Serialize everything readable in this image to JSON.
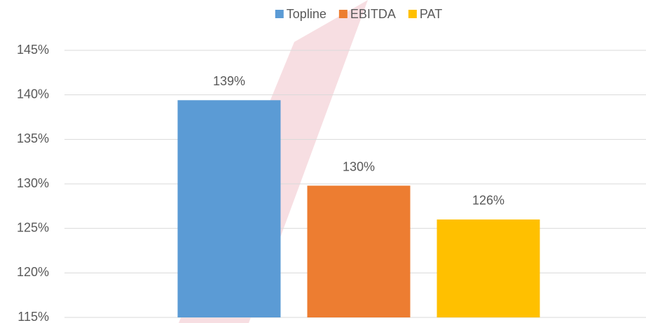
{
  "chart_data": {
    "type": "bar",
    "categories": [
      null
    ],
    "series": [
      {
        "name": "Topline",
        "color": "#5b9bd5",
        "values": [
          139.4
        ],
        "value_labels": [
          "139%"
        ]
      },
      {
        "name": "EBITDA",
        "color": "#ed7d31",
        "values": [
          129.8
        ],
        "value_labels": [
          "130%"
        ]
      },
      {
        "name": "PAT",
        "color": "#ffc000",
        "values": [
          126.0
        ],
        "value_labels": [
          "126%"
        ]
      }
    ],
    "ylim": [
      115,
      145
    ],
    "yticks": [
      {
        "value": 115,
        "label": "115%"
      },
      {
        "value": 120,
        "label": "120%"
      },
      {
        "value": 125,
        "label": "125%"
      },
      {
        "value": 130,
        "label": "130%"
      },
      {
        "value": 135,
        "label": "135%"
      },
      {
        "value": 140,
        "label": "140%"
      },
      {
        "value": 145,
        "label": "145%"
      }
    ],
    "grid": true,
    "legend": "top"
  }
}
